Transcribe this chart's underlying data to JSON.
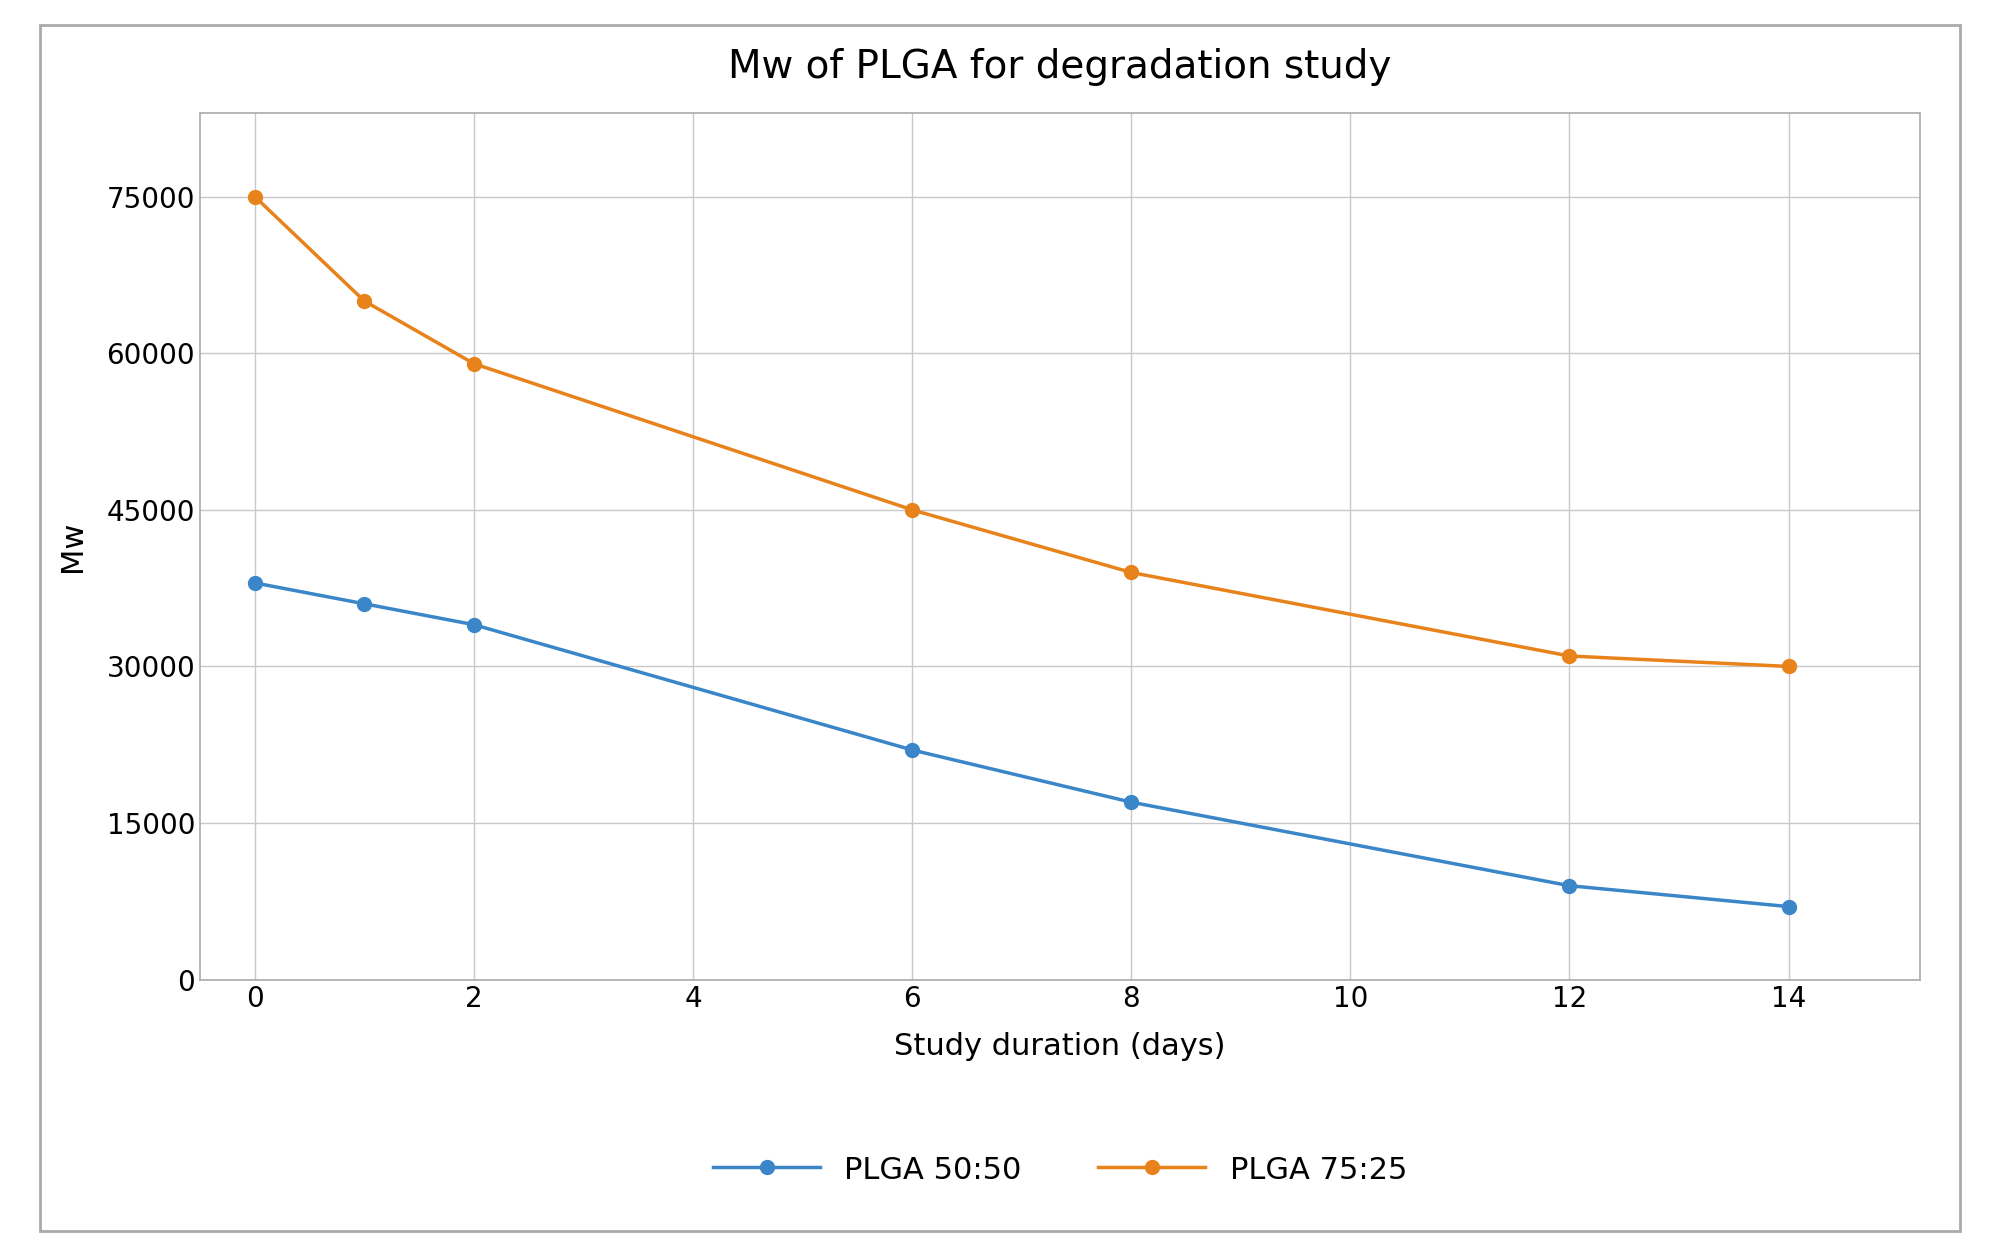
{
  "title": "Mw of PLGA for degradation study",
  "xlabel": "Study duration (days)",
  "ylabel": "Mw",
  "series": [
    {
      "label": "PLGA 50:50",
      "color": "#3A86C8",
      "x": [
        0,
        1,
        2,
        6,
        8,
        12,
        14
      ],
      "y": [
        38000,
        36000,
        34000,
        22000,
        17000,
        9000,
        7000
      ]
    },
    {
      "label": "PLGA 75:25",
      "color": "#E8821A",
      "x": [
        0,
        1,
        2,
        6,
        8,
        12,
        14
      ],
      "y": [
        75000,
        65000,
        59000,
        45000,
        39000,
        31000,
        30000
      ]
    }
  ],
  "xlim": [
    -0.5,
    15.2
  ],
  "ylim": [
    0,
    83000
  ],
  "xticks": [
    0,
    2,
    4,
    6,
    8,
    10,
    12,
    14
  ],
  "yticks": [
    0,
    15000,
    30000,
    45000,
    60000,
    75000
  ],
  "ytick_labels": [
    "0",
    "15000",
    "30000",
    "45000",
    "60000",
    "75000"
  ],
  "background_color": "#ffffff",
  "grid_color": "#c8c8c8",
  "spine_color": "#aaaaaa",
  "outer_border_color": "#aaaaaa",
  "line_width": 2.5,
  "marker_size": 10,
  "title_fontsize": 28,
  "label_fontsize": 22,
  "tick_fontsize": 20,
  "legend_fontsize": 22
}
